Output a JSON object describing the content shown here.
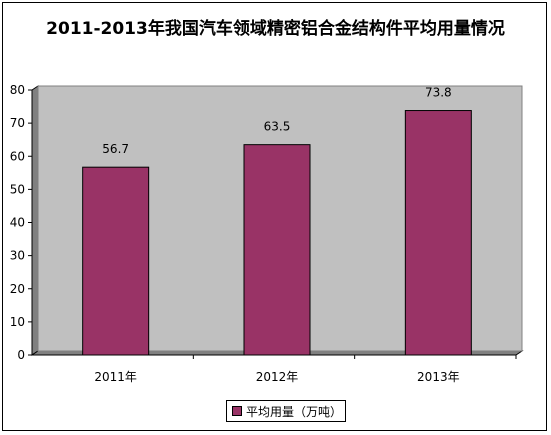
{
  "chart_data": {
    "type": "bar",
    "title": "2011-2013年我国汽车领域精密铝合金结构件平均用量情况",
    "categories": [
      "2011年",
      "2012年",
      "2013年"
    ],
    "series": [
      {
        "name": "平均用量（万吨）",
        "values": [
          56.7,
          63.5,
          73.8
        ],
        "color": "#993366"
      }
    ],
    "value_labels": [
      "56.7",
      "63.5",
      "73.8"
    ],
    "ylim": [
      0,
      80
    ],
    "yticks": [
      "0",
      "10",
      "20",
      "30",
      "40",
      "50",
      "60",
      "70",
      "80"
    ],
    "grid": false,
    "plot_background": "#c0c0c0",
    "legend": "bottom"
  }
}
